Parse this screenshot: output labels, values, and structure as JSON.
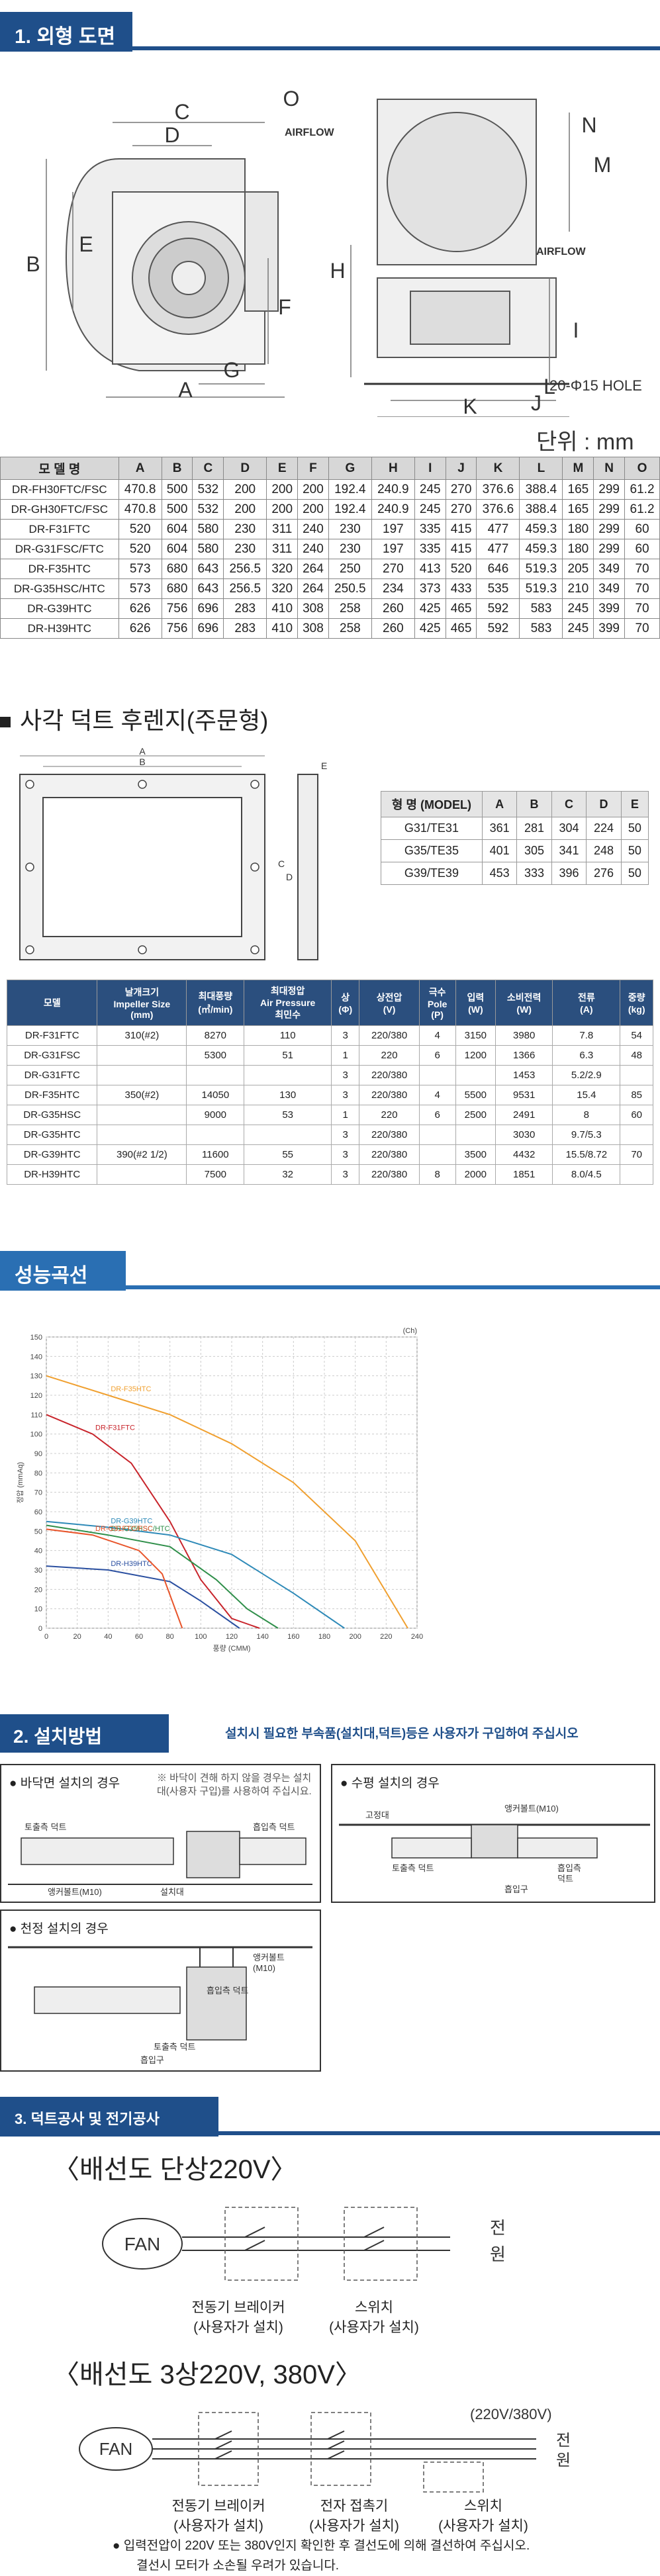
{
  "sections": {
    "outline": "1. 외형 도면",
    "performance_curve": "성능곡선",
    "install": "2. 설치방법",
    "install_note": "설치시 필요한 부속품(설치대,덕트)등은 사용자가 구입하여 주십시오",
    "electrical": "3. 덕트공사 및 전기공사"
  },
  "outline": {
    "dim_labels": [
      "C",
      "D",
      "O",
      "N",
      "M",
      "E",
      "B",
      "H",
      "I",
      "J",
      "K",
      "L",
      "F",
      "A",
      "G"
    ],
    "airflow_top": "AIRFLOW",
    "airflow_side": "AIRFLOW",
    "hole": "20-Φ15 HOLE",
    "unit": "단위 : mm"
  },
  "spec_table": {
    "headers": [
      "모 델 명",
      "A",
      "B",
      "C",
      "D",
      "E",
      "F",
      "G",
      "H",
      "I",
      "J",
      "K",
      "L",
      "M",
      "N",
      "O"
    ],
    "rows": [
      [
        "DR-FH30FTC/FSC",
        "470.8",
        "500",
        "532",
        "200",
        "200",
        "200",
        "192.4",
        "240.9",
        "245",
        "270",
        "376.6",
        "388.4",
        "165",
        "299",
        "61.2"
      ],
      [
        "DR-GH30FTC/FSC",
        "470.8",
        "500",
        "532",
        "200",
        "200",
        "200",
        "192.4",
        "240.9",
        "245",
        "270",
        "376.6",
        "388.4",
        "165",
        "299",
        "61.2"
      ],
      [
        "DR-F31FTC",
        "520",
        "604",
        "580",
        "230",
        "311",
        "240",
        "230",
        "197",
        "335",
        "415",
        "477",
        "459.3",
        "180",
        "299",
        "60"
      ],
      [
        "DR-G31FSC/FTC",
        "520",
        "604",
        "580",
        "230",
        "311",
        "240",
        "230",
        "197",
        "335",
        "415",
        "477",
        "459.3",
        "180",
        "299",
        "60"
      ],
      [
        "DR-F35HTC",
        "573",
        "680",
        "643",
        "256.5",
        "320",
        "264",
        "250",
        "270",
        "413",
        "520",
        "646",
        "519.3",
        "205",
        "349",
        "70"
      ],
      [
        "DR-G35HSC/HTC",
        "573",
        "680",
        "643",
        "256.5",
        "320",
        "264",
        "250.5",
        "234",
        "373",
        "433",
        "535",
        "519.3",
        "210",
        "349",
        "70"
      ],
      [
        "DR-G39HTC",
        "626",
        "756",
        "696",
        "283",
        "410",
        "308",
        "258",
        "260",
        "425",
        "465",
        "592",
        "583",
        "245",
        "399",
        "70"
      ],
      [
        "DR-H39HTC",
        "626",
        "756",
        "696",
        "283",
        "410",
        "308",
        "258",
        "260",
        "425",
        "465",
        "592",
        "583",
        "245",
        "399",
        "70"
      ]
    ]
  },
  "duct_flange": {
    "title": "사각 덕트 후렌지(주문형)",
    "dim_labels": [
      "A",
      "B",
      "C",
      "D",
      "E"
    ],
    "headers": [
      "형 명 (MODEL)",
      "A",
      "B",
      "C",
      "D",
      "E"
    ],
    "rows": [
      [
        "G31/TE31",
        "361",
        "281",
        "304",
        "224",
        "50"
      ],
      [
        "G35/TE35",
        "401",
        "305",
        "341",
        "248",
        "50"
      ],
      [
        "G39/TE39",
        "453",
        "333",
        "396",
        "276",
        "50"
      ]
    ]
  },
  "perf_table": {
    "headers": [
      "모델",
      "날개크기\nImpeller Size\n(mm)",
      "최대풍량\n(㎥/min)",
      "최대정압\nAir Pressure\n최민수",
      "상\n(Φ)",
      "상전압\n(V)",
      "극수\nPole\n(P)",
      "입력\n(W)",
      "소비전력\n(W)",
      "전류\n(A)",
      "중량\n(kg)"
    ],
    "rows": [
      {
        "model": "DR-F31FTC",
        "size": "310(#2)",
        "air": "8270",
        "press": "110",
        "phase": "3",
        "volt": "220/380",
        "pole": "4",
        "input": "3150",
        "power": "3980",
        "amp": "7.8",
        "weight": "54"
      },
      {
        "model": "DR-G31FSC",
        "size": "",
        "air": "5300",
        "press": "51",
        "phase": "1",
        "volt": "220",
        "pole": "6",
        "input": "1200",
        "power": "1366",
        "amp": "6.3",
        "weight": "48"
      },
      {
        "model": "DR-G31FTC",
        "size": "",
        "air": "",
        "press": "",
        "phase": "3",
        "volt": "220/380",
        "pole": "",
        "input": "",
        "power": "1453",
        "amp": "5.2/2.9",
        "weight": ""
      },
      {
        "model": "DR-F35HTC",
        "size": "350(#2)",
        "air": "14050",
        "press": "130",
        "phase": "3",
        "volt": "220/380",
        "pole": "4",
        "input": "5500",
        "power": "9531",
        "amp": "15.4",
        "weight": "85"
      },
      {
        "model": "DR-G35HSC",
        "size": "",
        "air": "9000",
        "press": "53",
        "phase": "1",
        "volt": "220",
        "pole": "6",
        "input": "2500",
        "power": "2491",
        "amp": "8",
        "weight": "60"
      },
      {
        "model": "DR-G35HTC",
        "size": "",
        "air": "",
        "press": "",
        "phase": "3",
        "volt": "220/380",
        "pole": "",
        "input": "",
        "power": "3030",
        "amp": "9.7/5.3",
        "weight": ""
      },
      {
        "model": "DR-G39HTC",
        "size": "390(#2 1/2)",
        "air": "11600",
        "press": "55",
        "phase": "3",
        "volt": "220/380",
        "pole": "",
        "input": "3500",
        "power": "4432",
        "amp": "15.5/8.72",
        "weight": "70"
      },
      {
        "model": "DR-H39HTC",
        "size": "",
        "air": "7500",
        "press": "32",
        "phase": "3",
        "volt": "220/380",
        "pole": "8",
        "input": "2000",
        "power": "1851",
        "amp": "8.0/4.5",
        "weight": ""
      }
    ]
  },
  "chart_data": {
    "type": "line",
    "title": "",
    "xlabel": "풍량 (CMM)",
    "ylabel": "정압 (mmAq)",
    "corner_label": "(Ch)",
    "xlim": [
      0,
      240
    ],
    "ylim": [
      0,
      150
    ],
    "x_ticks": [
      0,
      20,
      40,
      60,
      80,
      100,
      120,
      140,
      160,
      180,
      200,
      220,
      240
    ],
    "y_ticks": [
      0,
      10,
      20,
      30,
      40,
      50,
      60,
      70,
      80,
      90,
      100,
      110,
      120,
      130,
      140,
      150
    ],
    "grid": true,
    "series": [
      {
        "name": "DR-F35HTC",
        "color": "#f0a030",
        "points": [
          [
            0,
            130
          ],
          [
            40,
            120
          ],
          [
            80,
            110
          ],
          [
            120,
            95
          ],
          [
            160,
            75
          ],
          [
            200,
            45
          ],
          [
            234,
            0
          ]
        ]
      },
      {
        "name": "DR-F31FTC",
        "color": "#c8242b",
        "points": [
          [
            0,
            110
          ],
          [
            30,
            100
          ],
          [
            55,
            85
          ],
          [
            80,
            55
          ],
          [
            100,
            25
          ],
          [
            120,
            5
          ],
          [
            138,
            0
          ]
        ]
      },
      {
        "name": "DR-G39HTC",
        "color": "#2e8ab8",
        "points": [
          [
            0,
            55
          ],
          [
            40,
            52
          ],
          [
            80,
            48
          ],
          [
            120,
            38
          ],
          [
            160,
            18
          ],
          [
            193,
            0
          ]
        ]
      },
      {
        "name": "DR-G35HSC/HTC",
        "color": "#2f8f4a",
        "points": [
          [
            0,
            53
          ],
          [
            40,
            48
          ],
          [
            80,
            42
          ],
          [
            110,
            25
          ],
          [
            130,
            10
          ],
          [
            150,
            0
          ]
        ]
      },
      {
        "name": "DR-H39HTC",
        "color": "#2a4fa0",
        "points": [
          [
            0,
            32
          ],
          [
            40,
            30
          ],
          [
            80,
            24
          ],
          [
            100,
            14
          ],
          [
            125,
            0
          ]
        ]
      },
      {
        "name": "DR-G31FTC/FSC",
        "color": "#e8542a",
        "points": [
          [
            0,
            51
          ],
          [
            30,
            48
          ],
          [
            60,
            40
          ],
          [
            75,
            28
          ],
          [
            88,
            0
          ]
        ]
      }
    ]
  },
  "install": {
    "floor": {
      "label": "● 바닥면 설치의 경우",
      "note": "※ 바닥이 견해 하지 않을 경우는 설치대(사용자 구입)를 사용하여 주십시요.",
      "labels": [
        "토출측 덕트",
        "흡입측 덕트",
        "앵커볼트(M10)",
        "설치대"
      ]
    },
    "vertical": {
      "label": "● 수평 설치의 경우",
      "labels": [
        "고정대",
        "앵커볼트(M10)",
        "토출측 덕트",
        "흡입측",
        "덕트",
        "흡입구"
      ]
    },
    "ceiling": {
      "label": "● 천정 설치의 경우",
      "labels": [
        "앵커볼트",
        "(M10)",
        "흡입측 덕트",
        "토출측 덕트",
        "흡입구"
      ]
    }
  },
  "wiring_single": {
    "title": "〈배선도 단상220V〉",
    "fan": "FAN",
    "power": [
      "전",
      "원"
    ],
    "breaker_label": "전동기 브레이커",
    "breaker_sub": "(사용자가 설치)",
    "switch_label": "스위치",
    "switch_sub": "(사용자가 설치)"
  },
  "wiring_three": {
    "title": "〈배선도 3상220V, 380V〉",
    "fan": "FAN",
    "voltage": "(220V/380V)",
    "power": [
      "전",
      "원"
    ],
    "breaker_label": "전동기 브레이커",
    "breaker_sub": "(사용자가 설치)",
    "contactor_label": "전자 접촉기",
    "contactor_sub": "(사용자가 설치)",
    "switch_label": "스위치",
    "switch_sub": "(사용자가 설치)"
  },
  "foot_note": {
    "line1": "●  입력전압이 220V 또는 380V인지 확인한 후 결선도에 의해 결선하여 주십시오.",
    "line2": "결선시 모터가 소손될 우려가 있습니다."
  }
}
